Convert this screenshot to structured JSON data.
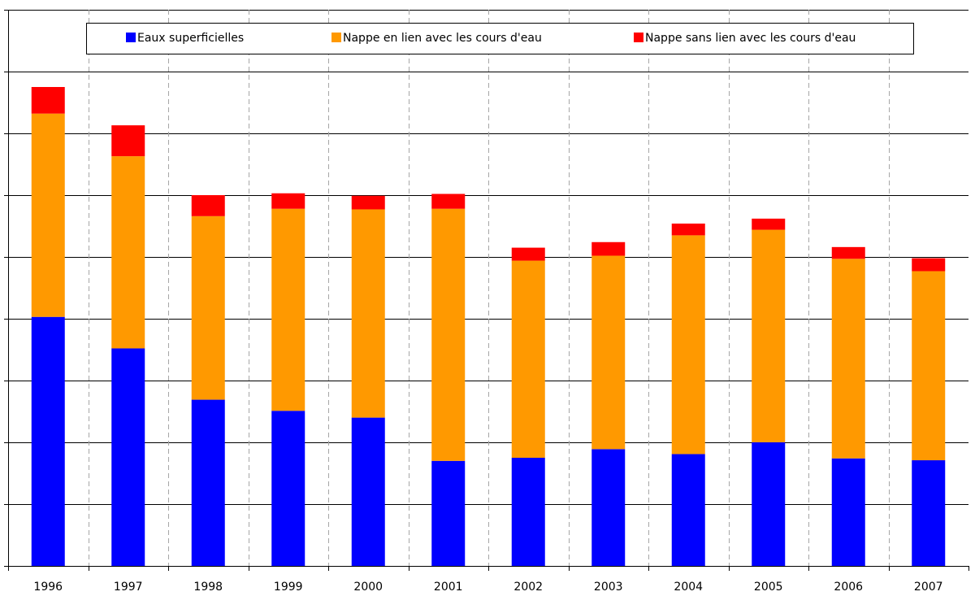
{
  "chart_data": {
    "type": "bar",
    "stacked": true,
    "categories": [
      "1996",
      "1997",
      "1998",
      "1999",
      "2000",
      "2001",
      "2002",
      "2003",
      "2004",
      "2005",
      "2006",
      "2007"
    ],
    "series": [
      {
        "name": "Eaux superficielles",
        "color": "#0000ff",
        "values": [
          4.03,
          3.52,
          2.69,
          2.51,
          2.4,
          1.7,
          1.75,
          1.89,
          1.81,
          2.0,
          1.74,
          1.71
        ]
      },
      {
        "name": "Nappe en lien avec les cours d'eau",
        "color": "#ff9900",
        "values": [
          3.29,
          3.11,
          2.97,
          3.27,
          3.37,
          4.08,
          3.19,
          3.13,
          3.54,
          3.44,
          3.23,
          3.06
        ]
      },
      {
        "name": "Nappe sans lien avec les cours d'eau",
        "color": "#ff0000",
        "values": [
          0.43,
          0.5,
          0.34,
          0.25,
          0.22,
          0.24,
          0.21,
          0.22,
          0.19,
          0.18,
          0.19,
          0.21
        ]
      }
    ],
    "ylim": [
      0,
      9
    ],
    "ytick_count": 9,
    "grid": true,
    "legend_position": "top",
    "show_y_tick_labels": false
  }
}
